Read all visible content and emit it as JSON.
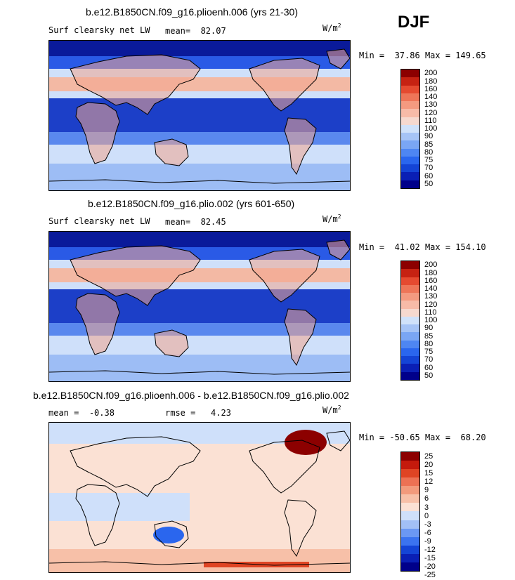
{
  "season_label": "DJF",
  "colors": {
    "abs_scale": [
      "#00008a",
      "#0a1fb5",
      "#1444d6",
      "#2a66ee",
      "#4e86f2",
      "#7aa6f4",
      "#a6c4f6",
      "#d0e2fa",
      "#f6d9cf",
      "#f7bba8",
      "#f49a80",
      "#ee7558",
      "#e54a30",
      "#c62212",
      "#8c0000"
    ],
    "diff_scale": [
      "#00008a",
      "#0a1fb5",
      "#1444d6",
      "#3b73ef",
      "#6b98f3",
      "#a2c0f6",
      "#cfe0fa",
      "#fbe1d4",
      "#f7c0a8",
      "#f29a7c",
      "#ec7154",
      "#df4424",
      "#c41a0c",
      "#8c0000"
    ],
    "ocean_base": "#cfe0fa",
    "tropics": "#1c3fc8",
    "polar": "#0a1a9a",
    "land": "#f2a68e"
  },
  "chart_data": [
    {
      "type": "heatmap",
      "title": "b.e12.B1850CN.f09_g16.plioenh.006 (yrs 21-30)",
      "variable": "Surf clearsky net LW",
      "mean_label": "mean=",
      "mean": "82.07",
      "units": "W/m",
      "units_exp": "2",
      "min_label": "Min =",
      "min": "37.86",
      "max_label": "Max =",
      "max": "149.65",
      "colorbar_levels": [
        "200",
        "180",
        "160",
        "140",
        "130",
        "120",
        "110",
        "100",
        "90",
        "85",
        "80",
        "75",
        "70",
        "60",
        "50"
      ]
    },
    {
      "type": "heatmap",
      "title": "b.e12.B1850CN.f09_g16.plio.002 (yrs 601-650)",
      "variable": "Surf clearsky net LW",
      "mean_label": "mean=",
      "mean": "82.45",
      "units": "W/m",
      "units_exp": "2",
      "min_label": "Min =",
      "min": "41.02",
      "max_label": "Max =",
      "max": "154.10",
      "colorbar_levels": [
        "200",
        "180",
        "160",
        "140",
        "130",
        "120",
        "110",
        "100",
        "90",
        "85",
        "80",
        "75",
        "70",
        "60",
        "50"
      ]
    },
    {
      "type": "heatmap",
      "title": "b.e12.B1850CN.f09_g16.plioenh.006 - b.e12.B1850CN.f09_g16.plio.002",
      "mean_label": "mean =",
      "mean": "-0.38",
      "rmse_label": "rmse =",
      "rmse": "4.23",
      "units": "W/m",
      "units_exp": "2",
      "min_label": "Min =",
      "min": "-50.65",
      "max_label": "Max =",
      "max": "68.20",
      "colorbar_levels": [
        "25",
        "20",
        "15",
        "12",
        "9",
        "6",
        "3",
        "0",
        "-3",
        "-6",
        "-9",
        "-12",
        "-15",
        "-20",
        "-25"
      ]
    }
  ]
}
